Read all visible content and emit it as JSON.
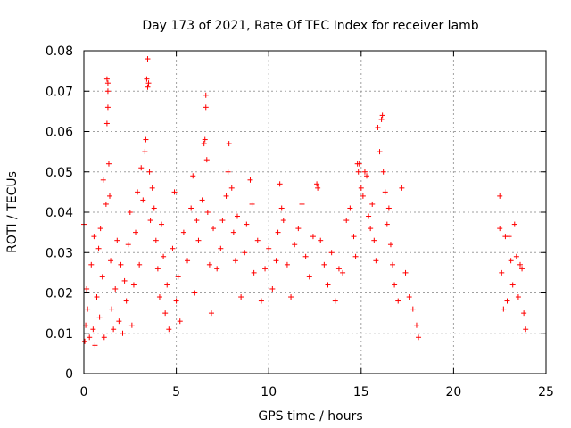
{
  "chart_data": {
    "type": "scatter",
    "title": "Day 173 of 2021, Rate Of TEC Index for receiver lamb",
    "xlabel": "GPS time / hours",
    "ylabel": "ROTI / TECUs",
    "xlim": [
      0,
      25
    ],
    "ylim": [
      0,
      0.08
    ],
    "xticks": [
      "0",
      "5",
      "10",
      "15",
      "20",
      "25"
    ],
    "yticks": [
      "0",
      "0.01",
      "0.02",
      "0.03",
      "0.04",
      "0.05",
      "0.06",
      "0.07",
      "0.08"
    ],
    "grid": true,
    "marker": "+",
    "color": "#ff0000",
    "series": [
      {
        "points": [
          [
            0.0,
            0.037
          ],
          [
            0.05,
            0.008
          ],
          [
            0.1,
            0.012
          ],
          [
            0.15,
            0.021
          ],
          [
            0.2,
            0.016
          ],
          [
            0.3,
            0.009
          ],
          [
            0.4,
            0.027
          ],
          [
            0.5,
            0.011
          ],
          [
            0.55,
            0.034
          ],
          [
            0.6,
            0.007
          ],
          [
            0.7,
            0.019
          ],
          [
            0.8,
            0.031
          ],
          [
            0.85,
            0.014
          ],
          [
            0.9,
            0.036
          ],
          [
            1.0,
            0.024
          ],
          [
            1.05,
            0.048
          ],
          [
            1.1,
            0.009
          ],
          [
            1.2,
            0.042
          ],
          [
            1.25,
            0.073
          ],
          [
            1.3,
            0.072
          ],
          [
            1.3,
            0.066
          ],
          [
            1.3,
            0.07
          ],
          [
            1.25,
            0.062
          ],
          [
            1.35,
            0.052
          ],
          [
            1.4,
            0.044
          ],
          [
            1.45,
            0.028
          ],
          [
            1.5,
            0.016
          ],
          [
            1.6,
            0.011
          ],
          [
            1.7,
            0.021
          ],
          [
            1.8,
            0.033
          ],
          [
            1.9,
            0.013
          ],
          [
            2.0,
            0.027
          ],
          [
            2.1,
            0.01
          ],
          [
            2.2,
            0.023
          ],
          [
            2.3,
            0.018
          ],
          [
            2.4,
            0.032
          ],
          [
            2.5,
            0.04
          ],
          [
            2.6,
            0.012
          ],
          [
            2.7,
            0.022
          ],
          [
            2.8,
            0.035
          ],
          [
            2.9,
            0.045
          ],
          [
            3.0,
            0.027
          ],
          [
            3.1,
            0.051
          ],
          [
            3.2,
            0.043
          ],
          [
            3.3,
            0.055
          ],
          [
            3.35,
            0.058
          ],
          [
            3.4,
            0.073
          ],
          [
            3.45,
            0.078
          ],
          [
            3.45,
            0.071
          ],
          [
            3.5,
            0.072
          ],
          [
            3.55,
            0.05
          ],
          [
            3.6,
            0.038
          ],
          [
            3.7,
            0.046
          ],
          [
            3.8,
            0.041
          ],
          [
            3.9,
            0.033
          ],
          [
            4.0,
            0.026
          ],
          [
            4.1,
            0.019
          ],
          [
            4.2,
            0.037
          ],
          [
            4.3,
            0.029
          ],
          [
            4.4,
            0.015
          ],
          [
            4.5,
            0.022
          ],
          [
            4.6,
            0.011
          ],
          [
            4.8,
            0.031
          ],
          [
            4.9,
            0.045
          ],
          [
            5.0,
            0.018
          ],
          [
            5.1,
            0.024
          ],
          [
            5.2,
            0.013
          ],
          [
            5.4,
            0.035
          ],
          [
            5.6,
            0.028
          ],
          [
            5.8,
            0.041
          ],
          [
            5.9,
            0.049
          ],
          [
            6.0,
            0.02
          ],
          [
            6.1,
            0.038
          ],
          [
            6.2,
            0.033
          ],
          [
            6.4,
            0.043
          ],
          [
            6.5,
            0.057
          ],
          [
            6.55,
            0.058
          ],
          [
            6.6,
            0.069
          ],
          [
            6.6,
            0.066
          ],
          [
            6.65,
            0.053
          ],
          [
            6.7,
            0.04
          ],
          [
            6.8,
            0.027
          ],
          [
            6.9,
            0.015
          ],
          [
            7.0,
            0.036
          ],
          [
            7.2,
            0.026
          ],
          [
            7.4,
            0.031
          ],
          [
            7.5,
            0.038
          ],
          [
            7.7,
            0.044
          ],
          [
            7.8,
            0.05
          ],
          [
            7.85,
            0.057
          ],
          [
            8.0,
            0.046
          ],
          [
            8.1,
            0.035
          ],
          [
            8.2,
            0.028
          ],
          [
            8.3,
            0.039
          ],
          [
            8.5,
            0.019
          ],
          [
            8.7,
            0.03
          ],
          [
            8.8,
            0.037
          ],
          [
            9.0,
            0.048
          ],
          [
            9.1,
            0.042
          ],
          [
            9.2,
            0.025
          ],
          [
            9.4,
            0.033
          ],
          [
            9.6,
            0.018
          ],
          [
            9.8,
            0.026
          ],
          [
            10.0,
            0.031
          ],
          [
            10.2,
            0.021
          ],
          [
            10.4,
            0.028
          ],
          [
            10.5,
            0.035
          ],
          [
            10.6,
            0.047
          ],
          [
            10.7,
            0.041
          ],
          [
            10.8,
            0.038
          ],
          [
            11.0,
            0.027
          ],
          [
            11.2,
            0.019
          ],
          [
            11.4,
            0.032
          ],
          [
            11.6,
            0.036
          ],
          [
            11.8,
            0.042
          ],
          [
            12.0,
            0.029
          ],
          [
            12.2,
            0.024
          ],
          [
            12.4,
            0.034
          ],
          [
            12.6,
            0.047
          ],
          [
            12.65,
            0.046
          ],
          [
            12.8,
            0.033
          ],
          [
            13.0,
            0.027
          ],
          [
            13.2,
            0.022
          ],
          [
            13.4,
            0.03
          ],
          [
            13.6,
            0.018
          ],
          [
            13.8,
            0.026
          ],
          [
            14.0,
            0.025
          ],
          [
            14.2,
            0.038
          ],
          [
            14.4,
            0.041
          ],
          [
            14.6,
            0.034
          ],
          [
            14.7,
            0.029
          ],
          [
            14.8,
            0.052
          ],
          [
            14.85,
            0.05
          ],
          [
            14.9,
            0.052
          ],
          [
            15.0,
            0.046
          ],
          [
            15.1,
            0.044
          ],
          [
            15.2,
            0.05
          ],
          [
            15.3,
            0.049
          ],
          [
            15.4,
            0.039
          ],
          [
            15.5,
            0.036
          ],
          [
            15.6,
            0.042
          ],
          [
            15.7,
            0.033
          ],
          [
            15.8,
            0.028
          ],
          [
            15.9,
            0.061
          ],
          [
            16.0,
            0.055
          ],
          [
            16.1,
            0.063
          ],
          [
            16.15,
            0.064
          ],
          [
            16.2,
            0.05
          ],
          [
            16.3,
            0.045
          ],
          [
            16.4,
            0.037
          ],
          [
            16.5,
            0.041
          ],
          [
            16.6,
            0.032
          ],
          [
            16.7,
            0.027
          ],
          [
            16.8,
            0.022
          ],
          [
            17.0,
            0.018
          ],
          [
            17.2,
            0.046
          ],
          [
            17.4,
            0.025
          ],
          [
            17.6,
            0.019
          ],
          [
            17.8,
            0.016
          ],
          [
            18.0,
            0.012
          ],
          [
            18.1,
            0.009
          ],
          [
            22.5,
            0.044
          ],
          [
            22.5,
            0.036
          ],
          [
            22.6,
            0.025
          ],
          [
            22.7,
            0.016
          ],
          [
            22.8,
            0.034
          ],
          [
            22.9,
            0.018
          ],
          [
            23.0,
            0.034
          ],
          [
            23.1,
            0.028
          ],
          [
            23.2,
            0.022
          ],
          [
            23.3,
            0.037
          ],
          [
            23.4,
            0.029
          ],
          [
            23.5,
            0.019
          ],
          [
            23.6,
            0.027
          ],
          [
            23.7,
            0.026
          ],
          [
            23.8,
            0.015
          ],
          [
            23.9,
            0.011
          ]
        ]
      }
    ]
  }
}
